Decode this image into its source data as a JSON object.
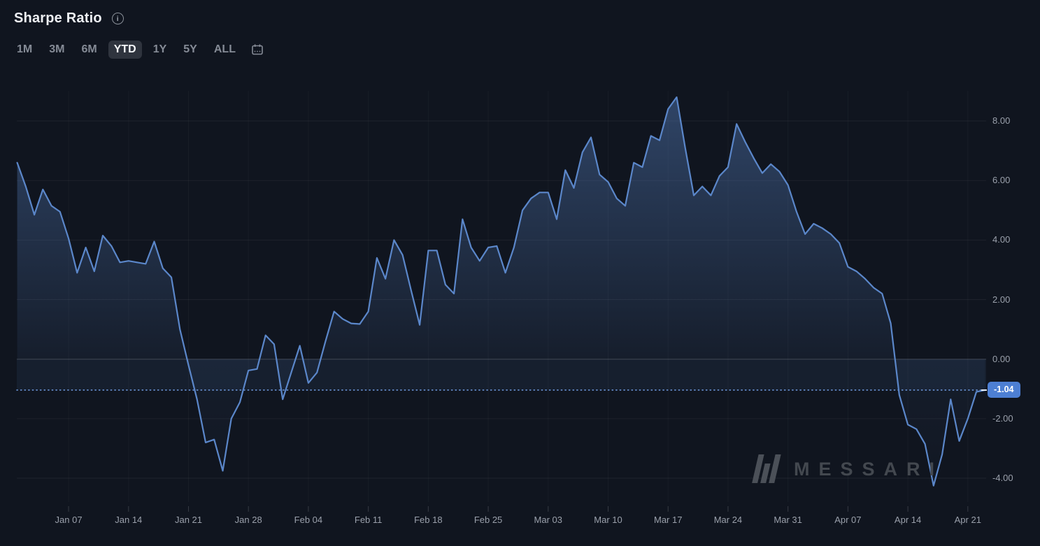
{
  "header": {
    "title": "Sharpe Ratio",
    "info_icon": "info-circle-icon"
  },
  "range_selector": {
    "options": [
      "1M",
      "3M",
      "6M",
      "YTD",
      "1Y",
      "5Y",
      "ALL"
    ],
    "selected": "YTD",
    "calendar_icon": "calendar-icon"
  },
  "current_value_badge": {
    "label": "-1.04"
  },
  "watermark": {
    "logo_icon": "messari-logo",
    "text": "MESSARI"
  },
  "colors": {
    "background": "#10151f",
    "line": "#5b87ca",
    "area_fill_top": "#5b87ca",
    "badge_bg": "#4d7fd3",
    "dotted_line": "#6b94d6",
    "axis_text": "#9aa0ab",
    "grid_line": "rgba(255,255,255,0.06)",
    "zero_line": "rgba(255,255,255,0.13)",
    "watermark_gray": "#43484f",
    "selected_range_bg": "#2f343e"
  },
  "chart_data": {
    "type": "area",
    "title": "Sharpe Ratio",
    "xlabel": "",
    "ylabel": "",
    "ylim": [
      -4.9,
      9.2
    ],
    "baseline": 0,
    "grid": "horizontal-major",
    "legend": "none",
    "current_value": -1.04,
    "dotted_reference_value": -1.04,
    "y_tick_labels": [
      "8.00",
      "6.00",
      "4.00",
      "2.00",
      "0.00",
      "-2.00",
      "-4.00"
    ],
    "y_tick_values": [
      8,
      6,
      4,
      2,
      0,
      -2,
      -4
    ],
    "x_tick_labels": [
      "Jan 07",
      "Jan 14",
      "Jan 21",
      "Jan 28",
      "Feb 04",
      "Feb 11",
      "Feb 18",
      "Feb 25",
      "Mar 03",
      "Mar 10",
      "Mar 17",
      "Mar 24",
      "Mar 31",
      "Apr 07",
      "Apr 14",
      "Apr 21"
    ],
    "x_tick_indices": [
      6,
      13,
      20,
      27,
      34,
      41,
      48,
      55,
      62,
      69,
      76,
      83,
      90,
      97,
      104,
      111
    ],
    "dates": [
      "Jan 01",
      "Jan 02",
      "Jan 03",
      "Jan 04",
      "Jan 05",
      "Jan 06",
      "Jan 07",
      "Jan 08",
      "Jan 09",
      "Jan 10",
      "Jan 11",
      "Jan 12",
      "Jan 13",
      "Jan 14",
      "Jan 15",
      "Jan 16",
      "Jan 17",
      "Jan 18",
      "Jan 19",
      "Jan 20",
      "Jan 21",
      "Jan 22",
      "Jan 23",
      "Jan 24",
      "Jan 25",
      "Jan 26",
      "Jan 27",
      "Jan 28",
      "Jan 29",
      "Jan 30",
      "Jan 31",
      "Feb 01",
      "Feb 02",
      "Feb 03",
      "Feb 04",
      "Feb 05",
      "Feb 06",
      "Feb 07",
      "Feb 08",
      "Feb 09",
      "Feb 10",
      "Feb 11",
      "Feb 12",
      "Feb 13",
      "Feb 14",
      "Feb 15",
      "Feb 16",
      "Feb 17",
      "Feb 18",
      "Feb 19",
      "Feb 20",
      "Feb 21",
      "Feb 22",
      "Feb 23",
      "Feb 24",
      "Feb 25",
      "Feb 26",
      "Feb 27",
      "Feb 28",
      "Feb 29",
      "Mar 01",
      "Mar 02",
      "Mar 03",
      "Mar 04",
      "Mar 05",
      "Mar 06",
      "Mar 07",
      "Mar 08",
      "Mar 09",
      "Mar 10",
      "Mar 11",
      "Mar 12",
      "Mar 13",
      "Mar 14",
      "Mar 15",
      "Mar 16",
      "Mar 17",
      "Mar 18",
      "Mar 19",
      "Mar 20",
      "Mar 21",
      "Mar 22",
      "Mar 23",
      "Mar 24",
      "Mar 25",
      "Mar 26",
      "Mar 27",
      "Mar 28",
      "Mar 29",
      "Mar 30",
      "Mar 31",
      "Apr 01",
      "Apr 02",
      "Apr 03",
      "Apr 04",
      "Apr 05",
      "Apr 06",
      "Apr 07",
      "Apr 08",
      "Apr 09",
      "Apr 10",
      "Apr 11",
      "Apr 12",
      "Apr 13",
      "Apr 14",
      "Apr 15",
      "Apr 16",
      "Apr 17",
      "Apr 18",
      "Apr 19",
      "Apr 20",
      "Apr 21",
      "Apr 22",
      "Apr 23"
    ],
    "values": [
      6.6,
      5.8,
      4.85,
      5.7,
      5.15,
      4.95,
      4.05,
      2.9,
      3.75,
      2.95,
      4.15,
      3.8,
      3.25,
      3.3,
      3.25,
      3.2,
      3.95,
      3.05,
      2.75,
      1.0,
      -0.2,
      -1.35,
      -2.8,
      -2.7,
      -3.75,
      -2.0,
      -1.45,
      -0.38,
      -0.33,
      0.8,
      0.5,
      -1.35,
      -0.45,
      0.45,
      -0.8,
      -0.45,
      0.6,
      1.6,
      1.35,
      1.2,
      1.18,
      1.6,
      3.4,
      2.7,
      4.0,
      3.5,
      2.3,
      1.15,
      3.65,
      3.65,
      2.5,
      2.2,
      4.7,
      3.75,
      3.3,
      3.75,
      3.8,
      2.9,
      3.75,
      5.0,
      5.4,
      5.6,
      5.6,
      4.7,
      6.35,
      5.75,
      6.95,
      7.45,
      6.2,
      5.95,
      5.4,
      5.15,
      6.6,
      6.45,
      7.5,
      7.35,
      8.4,
      8.8,
      7.1,
      5.5,
      5.8,
      5.5,
      6.15,
      6.45,
      7.9,
      7.3,
      6.75,
      6.25,
      6.55,
      6.3,
      5.85,
      4.95,
      4.2,
      4.55,
      4.4,
      4.2,
      3.9,
      3.1,
      2.95,
      2.7,
      2.4,
      2.2,
      1.2,
      -1.2,
      -2.2,
      -2.35,
      -2.85,
      -4.25,
      -3.2,
      -1.35,
      -2.75,
      -2.0,
      -1.1,
      -1.04
    ]
  }
}
